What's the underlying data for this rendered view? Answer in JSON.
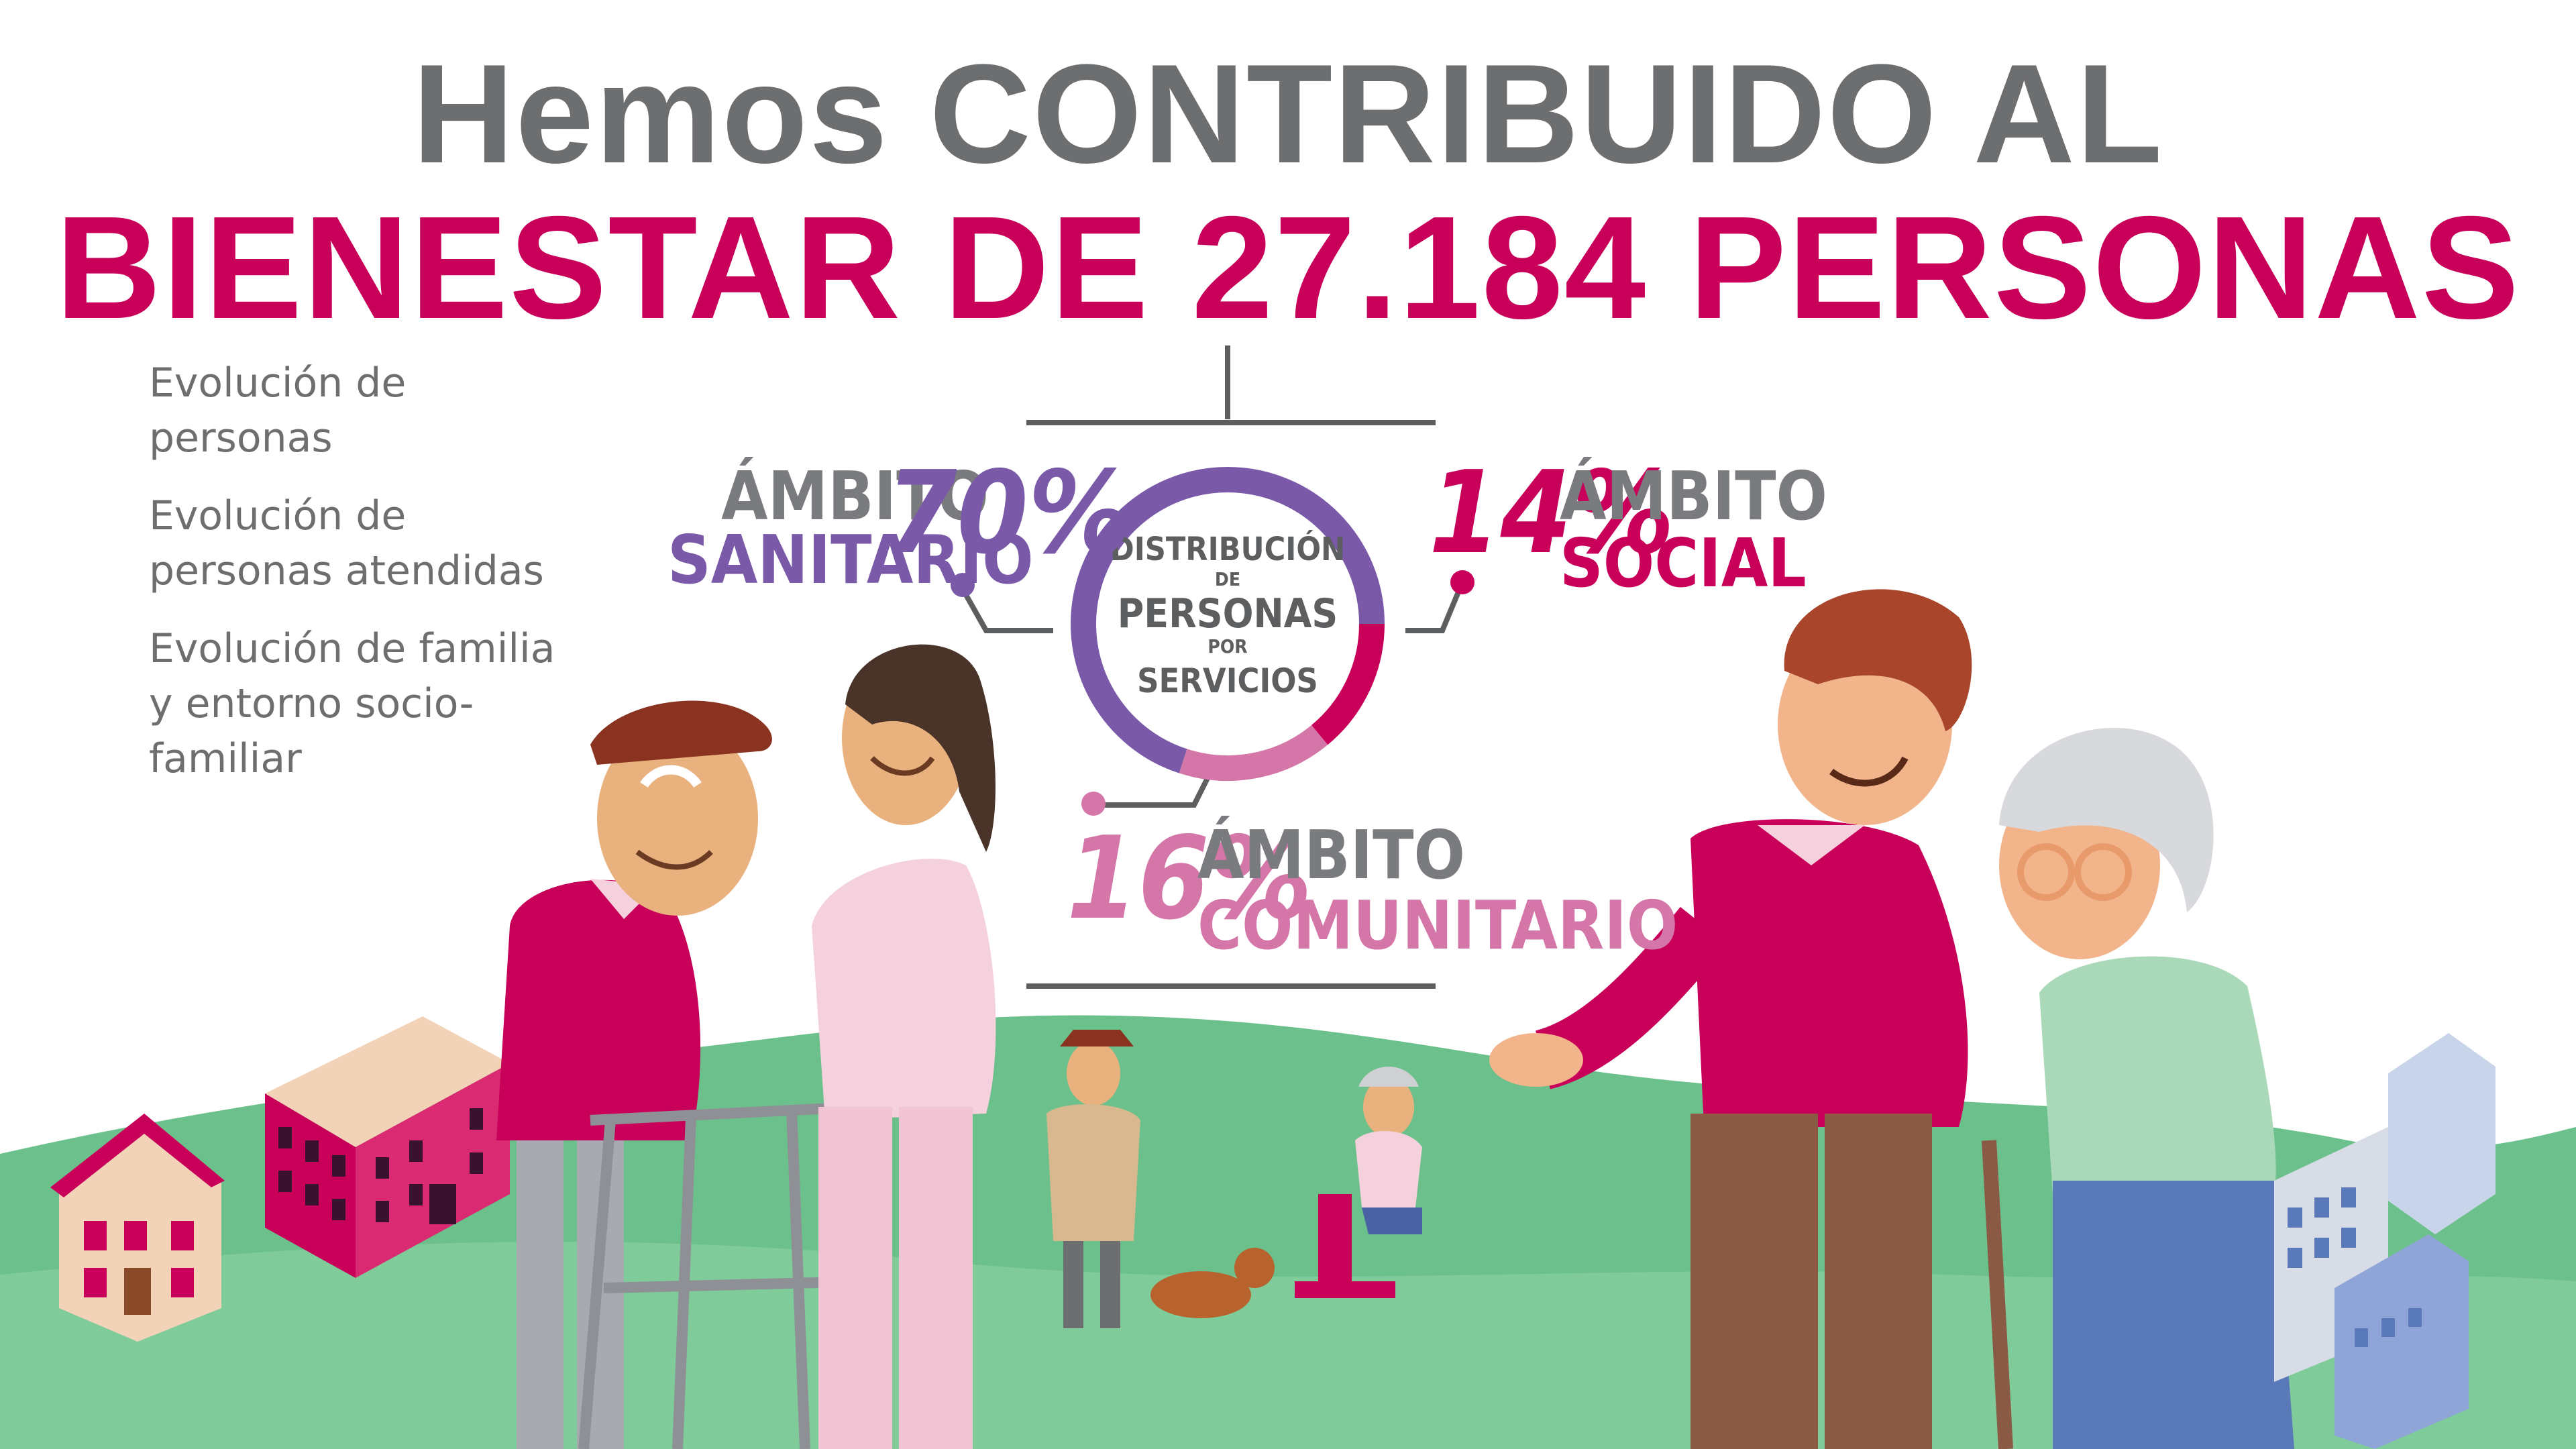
{
  "title": {
    "line1": "Hemos CONTRIBUIDO AL",
    "line2": "BIENESTAR DE 27.184 PERSONAS"
  },
  "menu": {
    "items": [
      {
        "label": "Evolución de personas"
      },
      {
        "label": "Evolución de personas atendidas"
      },
      {
        "label": "Evolución de familia y entorno socio-familiar"
      }
    ]
  },
  "colors": {
    "title_gray": "#6d6e70",
    "brand_magenta": "#c8005a",
    "sanitario": "#7a5aa8",
    "social": "#c8005a",
    "comunitario": "#d576a8",
    "grass": "#6cc08b",
    "grass_light": "#8fd4a8"
  },
  "chart_data": {
    "type": "pie",
    "title": "DISTRIBUCIÓN DE PERSONAS POR SERVICIOS",
    "title_parts": [
      "DISTRIBUCIÓN",
      "DE",
      "PERSONAS",
      "POR",
      "SERVICIOS"
    ],
    "series": [
      {
        "category": "ÁMBITO SANITARIO",
        "label_top": "ÁMBITO",
        "label_bottom": "SANITARIO",
        "value": 70,
        "display": "70%",
        "color": "#7a5aa8"
      },
      {
        "category": "ÁMBITO SOCIAL",
        "label_top": "ÁMBITO",
        "label_bottom": "SOCIAL",
        "value": 14,
        "display": "14%",
        "color": "#c8005a"
      },
      {
        "category": "ÁMBITO COMUNITARIO",
        "label_top": "ÁMBITO",
        "label_bottom": "COMUNITARIO",
        "value": 16,
        "display": "16%",
        "color": "#d576a8"
      }
    ],
    "start_angle_deg": 0,
    "order_clockwise": [
      "ÁMBITO SOCIAL",
      "ÁMBITO COMUNITARIO",
      "ÁMBITO SANITARIO"
    ]
  }
}
